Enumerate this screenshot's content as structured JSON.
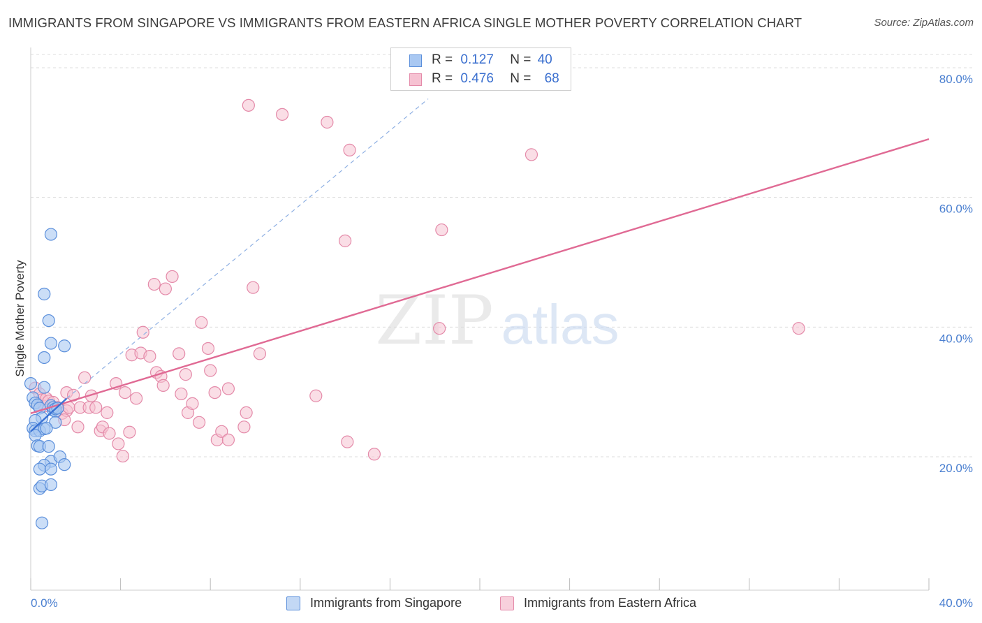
{
  "title": "IMMIGRANTS FROM SINGAPORE VS IMMIGRANTS FROM EASTERN AFRICA SINGLE MOTHER POVERTY CORRELATION CHART",
  "source": "Source: ZipAtlas.com",
  "watermark": {
    "zip": "ZIP",
    "atlas": "atlas"
  },
  "colors": {
    "singapore_fill": "#a9c8f2",
    "singapore_stroke": "#5b8fdb",
    "singapore_line": "#3a72d4",
    "africa_fill": "#f6c2d2",
    "africa_stroke": "#e48aa9",
    "africa_line": "#e06a94",
    "tick_label": "#4a7fd0",
    "grid": "#dcdcdc"
  },
  "legend": {
    "r_label": "R =",
    "n_label": "N =",
    "rows": [
      {
        "r": "0.127",
        "n": "40"
      },
      {
        "r": "0.476",
        "n": "68"
      }
    ]
  },
  "bottom_legend": [
    "Immigrants from Singapore",
    "Immigrants from Eastern Africa"
  ],
  "chart_data": {
    "type": "scatter",
    "ylabel": "Single Mother Poverty",
    "xlabel": "",
    "xlim": [
      0,
      40
    ],
    "ylim": [
      0,
      85
    ],
    "x_tick_labels": [
      "0.0%",
      "40.0%"
    ],
    "y_ticks": [
      20,
      40,
      60,
      80
    ],
    "y_tick_labels": [
      "20.0%",
      "40.0%",
      "60.0%",
      "80.0%"
    ],
    "series": [
      {
        "name": "Immigrants from Singapore",
        "r": 0.127,
        "n": 40,
        "trend_solid": {
          "x": [
            0,
            1.6
          ],
          "y": [
            23.9,
            29.0
          ]
        },
        "trend_dashed": {
          "x": [
            1.6,
            17.7
          ],
          "y": [
            29.0,
            75.2
          ]
        },
        "points": [
          [
            0.0,
            31.3
          ],
          [
            0.1,
            29.1
          ],
          [
            0.2,
            28.3
          ],
          [
            0.3,
            28.0
          ],
          [
            0.4,
            27.5
          ],
          [
            0.5,
            26.0
          ],
          [
            0.2,
            25.6
          ],
          [
            0.1,
            24.4
          ],
          [
            0.2,
            24.0
          ],
          [
            0.4,
            24.0
          ],
          [
            0.6,
            24.3
          ],
          [
            0.2,
            23.3
          ],
          [
            0.3,
            21.7
          ],
          [
            0.4,
            21.6
          ],
          [
            0.8,
            21.6
          ],
          [
            0.9,
            19.3
          ],
          [
            0.6,
            18.7
          ],
          [
            0.4,
            18.1
          ],
          [
            0.9,
            18.1
          ],
          [
            1.3,
            20.0
          ],
          [
            1.5,
            18.8
          ],
          [
            0.4,
            15.1
          ],
          [
            0.5,
            15.5
          ],
          [
            0.9,
            15.7
          ],
          [
            0.5,
            9.8
          ],
          [
            0.6,
            30.7
          ],
          [
            0.9,
            27.9
          ],
          [
            1.0,
            27.2
          ],
          [
            1.1,
            27.0
          ],
          [
            1.0,
            27.6
          ],
          [
            1.1,
            27.4
          ],
          [
            1.2,
            27.5
          ],
          [
            1.1,
            25.3
          ],
          [
            0.7,
            24.4
          ],
          [
            0.6,
            35.3
          ],
          [
            0.9,
            37.5
          ],
          [
            1.5,
            37.1
          ],
          [
            0.8,
            41.0
          ],
          [
            0.6,
            45.1
          ],
          [
            0.9,
            54.3
          ]
        ]
      },
      {
        "name": "Immigrants from Eastern Africa",
        "r": 0.476,
        "n": 68,
        "trend": {
          "x": [
            0,
            40
          ],
          "y": [
            26.7,
            69.0
          ]
        },
        "points": [
          [
            0.2,
            30.6
          ],
          [
            0.4,
            29.7
          ],
          [
            0.5,
            28.8
          ],
          [
            0.3,
            28.0
          ],
          [
            0.6,
            27.8
          ],
          [
            0.7,
            29.0
          ],
          [
            0.8,
            28.6
          ],
          [
            1.0,
            28.4
          ],
          [
            1.2,
            27.6
          ],
          [
            1.4,
            26.7
          ],
          [
            1.6,
            27.1
          ],
          [
            1.5,
            25.7
          ],
          [
            1.6,
            29.9
          ],
          [
            1.7,
            27.6
          ],
          [
            1.9,
            29.5
          ],
          [
            2.1,
            24.6
          ],
          [
            2.2,
            27.6
          ],
          [
            2.4,
            32.2
          ],
          [
            2.6,
            27.6
          ],
          [
            2.7,
            29.4
          ],
          [
            2.9,
            27.6
          ],
          [
            3.1,
            24.0
          ],
          [
            3.2,
            24.6
          ],
          [
            3.4,
            26.8
          ],
          [
            3.5,
            23.6
          ],
          [
            3.8,
            31.3
          ],
          [
            3.9,
            22.0
          ],
          [
            4.1,
            20.1
          ],
          [
            4.2,
            29.9
          ],
          [
            4.4,
            23.8
          ],
          [
            4.5,
            35.7
          ],
          [
            4.7,
            29.0
          ],
          [
            4.9,
            36.0
          ],
          [
            5.0,
            39.2
          ],
          [
            5.3,
            35.5
          ],
          [
            5.5,
            46.6
          ],
          [
            5.6,
            33.0
          ],
          [
            5.8,
            32.4
          ],
          [
            5.9,
            31.0
          ],
          [
            6.0,
            45.9
          ],
          [
            6.3,
            47.8
          ],
          [
            6.6,
            35.9
          ],
          [
            6.7,
            29.7
          ],
          [
            6.9,
            32.7
          ],
          [
            7.0,
            26.8
          ],
          [
            7.2,
            28.2
          ],
          [
            7.5,
            25.3
          ],
          [
            7.6,
            40.7
          ],
          [
            7.9,
            36.7
          ],
          [
            8.0,
            33.3
          ],
          [
            8.2,
            29.9
          ],
          [
            8.3,
            22.6
          ],
          [
            8.5,
            23.9
          ],
          [
            8.8,
            30.5
          ],
          [
            8.8,
            22.6
          ],
          [
            9.5,
            24.6
          ],
          [
            9.6,
            26.8
          ],
          [
            9.9,
            46.1
          ],
          [
            10.2,
            35.9
          ],
          [
            12.7,
            29.4
          ],
          [
            14.1,
            22.3
          ],
          [
            15.3,
            20.4
          ],
          [
            18.2,
            39.8
          ],
          [
            18.3,
            55.0
          ],
          [
            22.3,
            66.6
          ],
          [
            34.2,
            39.8
          ],
          [
            9.7,
            74.2
          ],
          [
            11.2,
            72.8
          ]
        ]
      }
    ],
    "extra_points_africa": [
      [
        13.2,
        71.6
      ],
      [
        14.2,
        67.3
      ],
      [
        14.0,
        53.3
      ]
    ]
  }
}
